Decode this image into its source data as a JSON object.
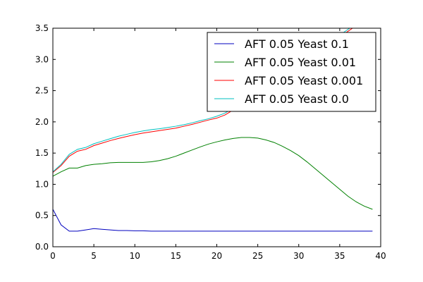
{
  "chart_data": {
    "type": "line",
    "title": "",
    "xlabel": "",
    "ylabel": "",
    "xlim": [
      0,
      40
    ],
    "ylim": [
      0,
      3.5
    ],
    "xticks": [
      0,
      5,
      10,
      15,
      20,
      25,
      30,
      35,
      40
    ],
    "yticks": [
      0.0,
      0.5,
      1.0,
      1.5,
      2.0,
      2.5,
      3.0,
      3.5
    ],
    "xtick_labels": [
      "0",
      "5",
      "10",
      "15",
      "20",
      "25",
      "30",
      "35",
      "40"
    ],
    "ytick_labels": [
      "0.0",
      "0.5",
      "1.0",
      "1.5",
      "2.0",
      "2.5",
      "3.0",
      "3.5"
    ],
    "grid": false,
    "legend_position": "top-right",
    "x": [
      0,
      1,
      2,
      3,
      4,
      5,
      6,
      7,
      8,
      9,
      10,
      11,
      12,
      13,
      14,
      15,
      16,
      17,
      18,
      19,
      20,
      21,
      22,
      23,
      24,
      25,
      26,
      27,
      28,
      29,
      30,
      31,
      32,
      33,
      34,
      35,
      36,
      37,
      38,
      39
    ],
    "series": [
      {
        "name": "AFT 0.05 Yeast 0.1",
        "color": "#0000bf",
        "values": [
          0.6,
          0.35,
          0.25,
          0.25,
          0.27,
          0.29,
          0.28,
          0.27,
          0.26,
          0.26,
          0.255,
          0.255,
          0.25,
          0.25,
          0.25,
          0.25,
          0.25,
          0.25,
          0.25,
          0.25,
          0.25,
          0.25,
          0.25,
          0.25,
          0.25,
          0.25,
          0.25,
          0.25,
          0.25,
          0.25,
          0.25,
          0.25,
          0.25,
          0.25,
          0.25,
          0.25,
          0.25,
          0.25,
          0.25,
          0.25
        ]
      },
      {
        "name": "AFT 0.05 Yeast 0.01",
        "color": "#008000",
        "values": [
          1.13,
          1.2,
          1.26,
          1.26,
          1.3,
          1.32,
          1.33,
          1.345,
          1.35,
          1.35,
          1.35,
          1.35,
          1.36,
          1.38,
          1.41,
          1.45,
          1.5,
          1.55,
          1.6,
          1.645,
          1.68,
          1.71,
          1.735,
          1.75,
          1.75,
          1.74,
          1.71,
          1.67,
          1.61,
          1.54,
          1.46,
          1.36,
          1.25,
          1.14,
          1.03,
          0.92,
          0.81,
          0.72,
          0.65,
          0.6
        ]
      },
      {
        "name": "AFT 0.05 Yeast 0.001",
        "color": "#ff0000",
        "values": [
          1.19,
          1.3,
          1.45,
          1.53,
          1.56,
          1.62,
          1.66,
          1.7,
          1.735,
          1.765,
          1.795,
          1.82,
          1.84,
          1.86,
          1.88,
          1.9,
          1.93,
          1.96,
          1.995,
          2.03,
          2.06,
          2.11,
          2.19,
          2.28,
          2.37,
          2.46,
          2.55,
          2.64,
          2.73,
          2.82,
          2.91,
          3.0,
          3.09,
          3.18,
          3.27,
          3.36,
          3.45,
          3.54,
          3.63,
          3.72
        ]
      },
      {
        "name": "AFT 0.05 Yeast 0.0",
        "color": "#00bfbf",
        "values": [
          1.2,
          1.32,
          1.48,
          1.56,
          1.59,
          1.65,
          1.69,
          1.73,
          1.77,
          1.8,
          1.83,
          1.855,
          1.875,
          1.89,
          1.91,
          1.93,
          1.955,
          1.985,
          2.02,
          2.05,
          2.09,
          2.14,
          2.22,
          2.31,
          2.4,
          2.49,
          2.58,
          2.67,
          2.76,
          2.85,
          2.94,
          3.03,
          3.12,
          3.21,
          3.3,
          3.39,
          3.48,
          3.57,
          3.66,
          3.75
        ]
      }
    ]
  }
}
